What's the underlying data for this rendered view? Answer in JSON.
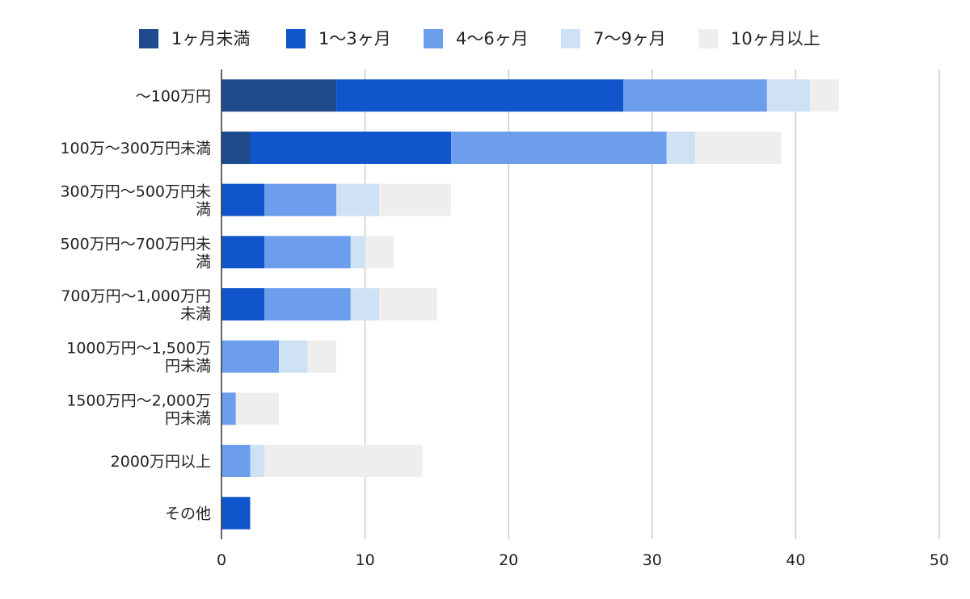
{
  "chart_data": {
    "type": "bar",
    "orientation": "horizontal",
    "stacked": true,
    "title": "",
    "xlabel": "",
    "ylabel": "",
    "xlim": [
      0,
      50
    ],
    "xticks": [
      0,
      10,
      20,
      30,
      40,
      50
    ],
    "grid": "vertical",
    "legend_position": "top",
    "categories": [
      [
        "〜100万円"
      ],
      [
        "100万〜300万円未満"
      ],
      [
        "300万円〜500万円未",
        "満"
      ],
      [
        "500万円〜700万円未",
        "満"
      ],
      [
        "700万円〜1,000万円",
        "未満"
      ],
      [
        "1000万円〜1,500万",
        "円未満"
      ],
      [
        "1500万円〜2,000万",
        "円未満"
      ],
      [
        "2000万円以上"
      ],
      [
        "その他"
      ]
    ],
    "series": [
      {
        "name": "1ヶ月未満",
        "color": "#1f4a8c",
        "values": [
          8,
          2,
          0,
          0,
          0,
          0,
          0,
          0,
          0
        ]
      },
      {
        "name": "1〜3ヶ月",
        "color": "#1155cc",
        "values": [
          20,
          14,
          3,
          3,
          3,
          0,
          0,
          0,
          2
        ]
      },
      {
        "name": "4〜6ヶ月",
        "color": "#6d9eeb",
        "values": [
          10,
          15,
          5,
          6,
          6,
          4,
          1,
          2,
          0
        ]
      },
      {
        "name": "7〜9ヶ月",
        "color": "#cfe2f3",
        "values": [
          3,
          2,
          3,
          1,
          2,
          2,
          0,
          1,
          0
        ]
      },
      {
        "name": "10ヶ月以上",
        "color": "#eeeeee",
        "values": [
          2,
          6,
          5,
          2,
          4,
          2,
          3,
          11,
          0
        ]
      }
    ]
  }
}
